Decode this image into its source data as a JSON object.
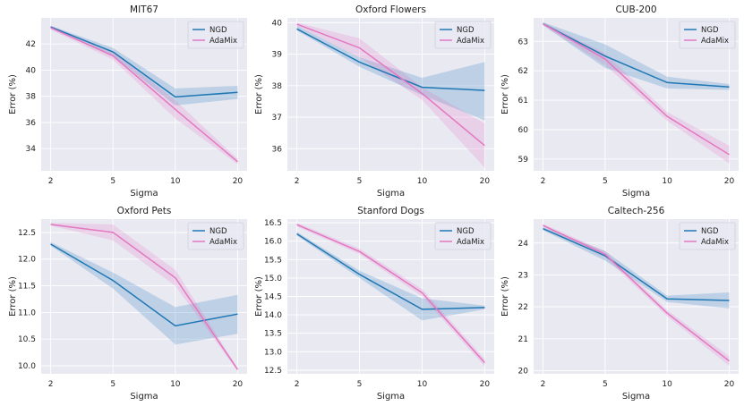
{
  "colors": {
    "background": "#e9e9f2",
    "grid": "#ffffff",
    "ngd": "#1f77b4",
    "adamix": "#e377c2"
  },
  "chart_data": [
    {
      "type": "line",
      "title": "MIT67",
      "xlabel": "Sigma",
      "ylabel": "Error (%)",
      "categories": [
        "2",
        "5",
        "10",
        "20"
      ],
      "ylim": [
        32.3,
        44.0
      ],
      "yticks": [
        34,
        36,
        38,
        40,
        42
      ],
      "ytick_labels": [
        "34",
        "36",
        "38",
        "40",
        "42"
      ],
      "legend_position": "top-right",
      "series": [
        {
          "name": "NGD",
          "values": [
            43.3,
            41.4,
            37.95,
            38.3
          ],
          "lower": [
            43.2,
            41.1,
            37.3,
            37.8
          ],
          "upper": [
            43.4,
            41.7,
            38.6,
            38.8
          ]
        },
        {
          "name": "AdaMix",
          "values": [
            43.25,
            41.1,
            37.0,
            33.0
          ],
          "lower": [
            43.1,
            40.8,
            36.3,
            32.8
          ],
          "upper": [
            43.4,
            41.4,
            37.7,
            33.2
          ]
        }
      ]
    },
    {
      "type": "line",
      "title": "Oxford Flowers",
      "xlabel": "Sigma",
      "ylabel": "Error (%)",
      "categories": [
        "2",
        "5",
        "10",
        "20"
      ],
      "ylim": [
        35.3,
        40.15
      ],
      "yticks": [
        36,
        37,
        38,
        39,
        40
      ],
      "ytick_labels": [
        "36",
        "37",
        "38",
        "39",
        "40"
      ],
      "legend_position": "top-right",
      "series": [
        {
          "name": "NGD",
          "values": [
            39.8,
            38.75,
            37.95,
            37.85
          ],
          "lower": [
            39.75,
            38.6,
            37.7,
            36.9
          ],
          "upper": [
            39.9,
            38.9,
            38.25,
            38.75
          ]
        },
        {
          "name": "AdaMix",
          "values": [
            39.95,
            39.2,
            37.75,
            36.1
          ],
          "lower": [
            39.9,
            38.9,
            37.55,
            35.4
          ],
          "upper": [
            40.0,
            39.5,
            37.95,
            36.8
          ]
        }
      ]
    },
    {
      "type": "line",
      "title": "CUB-200",
      "xlabel": "Sigma",
      "ylabel": "Error (%)",
      "categories": [
        "2",
        "5",
        "10",
        "20"
      ],
      "ylim": [
        58.6,
        63.8
      ],
      "yticks": [
        59,
        60,
        61,
        62,
        63
      ],
      "ytick_labels": [
        "59",
        "60",
        "61",
        "62",
        "63"
      ],
      "legend_position": "top-right",
      "series": [
        {
          "name": "NGD",
          "values": [
            63.6,
            62.5,
            61.6,
            61.45
          ],
          "lower": [
            63.55,
            62.1,
            61.4,
            61.35
          ],
          "upper": [
            63.65,
            62.9,
            61.8,
            61.55
          ]
        },
        {
          "name": "AdaMix",
          "values": [
            63.6,
            62.4,
            60.45,
            59.15
          ],
          "lower": [
            63.55,
            62.2,
            60.3,
            58.85
          ],
          "upper": [
            63.65,
            62.6,
            60.6,
            59.45
          ]
        }
      ]
    },
    {
      "type": "line",
      "title": "Oxford Pets",
      "xlabel": "Sigma",
      "ylabel": "Error (%)",
      "categories": [
        "2",
        "5",
        "10",
        "20"
      ],
      "ylim": [
        9.85,
        12.75
      ],
      "yticks": [
        10.0,
        10.5,
        11.0,
        11.5,
        12.0,
        12.5
      ],
      "ytick_labels": [
        "10.0",
        "10.5",
        "11.0",
        "11.5",
        "12.0",
        "12.5"
      ],
      "legend_position": "top-right",
      "series": [
        {
          "name": "NGD",
          "values": [
            12.28,
            11.6,
            10.75,
            10.97
          ],
          "lower": [
            12.25,
            11.45,
            10.4,
            10.6
          ],
          "upper": [
            12.32,
            11.75,
            11.1,
            11.33
          ]
        },
        {
          "name": "AdaMix",
          "values": [
            12.65,
            12.5,
            11.65,
            9.93
          ],
          "lower": [
            12.63,
            12.35,
            11.5,
            9.9
          ],
          "upper": [
            12.68,
            12.65,
            11.8,
            9.96
          ]
        }
      ]
    },
    {
      "type": "line",
      "title": "Stanford Dogs",
      "xlabel": "Sigma",
      "ylabel": "Error (%)",
      "categories": [
        "2",
        "5",
        "10",
        "20"
      ],
      "ylim": [
        12.4,
        16.6
      ],
      "yticks": [
        12.5,
        13.0,
        13.5,
        14.0,
        14.5,
        15.0,
        15.5,
        16.0,
        16.5
      ],
      "ytick_labels": [
        "12.5",
        "13.0",
        "13.5",
        "14.0",
        "14.5",
        "15.0",
        "15.5",
        "16.0",
        "16.5"
      ],
      "legend_position": "top-right",
      "series": [
        {
          "name": "NGD",
          "values": [
            16.2,
            15.1,
            14.15,
            14.2
          ],
          "lower": [
            16.15,
            15.0,
            13.85,
            14.15
          ],
          "upper": [
            16.25,
            15.2,
            14.45,
            14.25
          ]
        },
        {
          "name": "AdaMix",
          "values": [
            16.45,
            15.72,
            14.6,
            12.7
          ],
          "lower": [
            16.4,
            15.65,
            14.5,
            12.6
          ],
          "upper": [
            16.5,
            15.8,
            14.7,
            12.8
          ]
        }
      ]
    },
    {
      "type": "line",
      "title": "Caltech-256",
      "xlabel": "Sigma",
      "ylabel": "Error (%)",
      "categories": [
        "2",
        "5",
        "10",
        "20"
      ],
      "ylim": [
        19.9,
        24.75
      ],
      "yticks": [
        20,
        21,
        22,
        23,
        24
      ],
      "ytick_labels": [
        "20",
        "21",
        "22",
        "23",
        "24"
      ],
      "legend_position": "top-right",
      "series": [
        {
          "name": "NGD",
          "values": [
            24.45,
            23.6,
            22.25,
            22.2
          ],
          "lower": [
            24.4,
            23.45,
            22.15,
            21.95
          ],
          "upper": [
            24.5,
            23.75,
            22.35,
            22.45
          ]
        },
        {
          "name": "AdaMix",
          "values": [
            24.55,
            23.65,
            21.8,
            20.3
          ],
          "lower": [
            24.5,
            23.55,
            21.7,
            20.15
          ],
          "upper": [
            24.6,
            23.75,
            21.9,
            20.45
          ]
        }
      ]
    }
  ]
}
